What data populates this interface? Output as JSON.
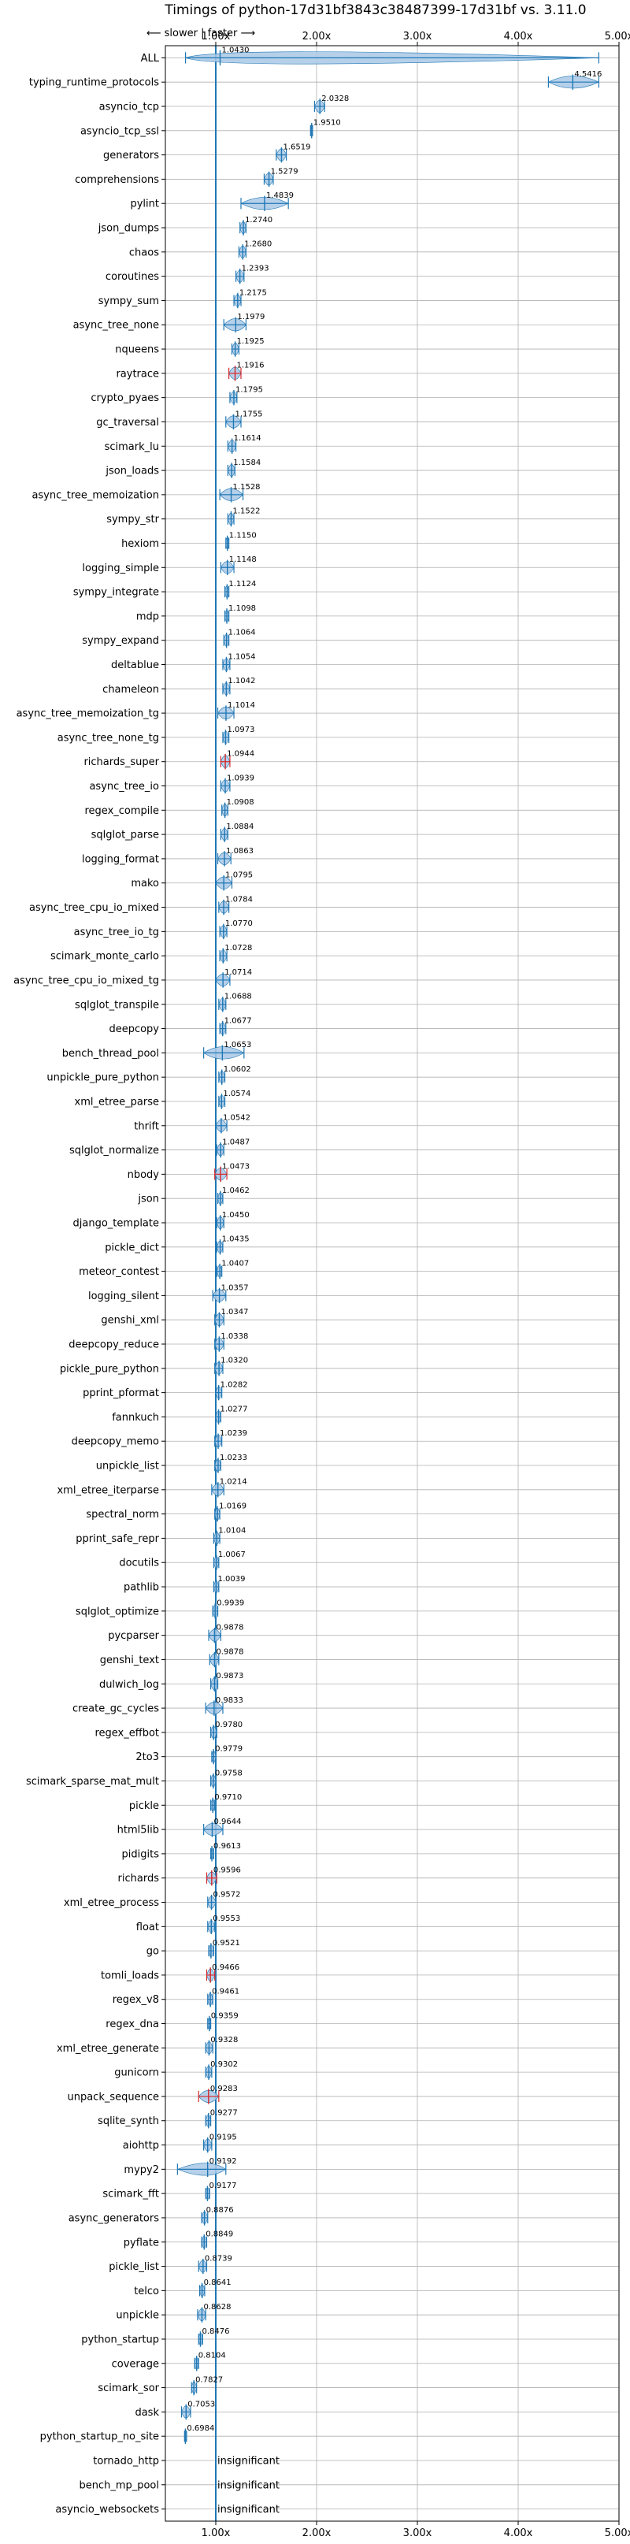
{
  "chart_data": {
    "type": "violin",
    "title": "Timings of python-17d31bf3843c38487399-17d31bf vs. 3.11.0",
    "direction_note": "⟵ slower | faster ⟶",
    "xlim": [
      0.5,
      5.0
    ],
    "xticks": [
      1,
      2,
      3,
      4,
      5
    ],
    "xtick_labels": [
      "1.00x",
      "2.00x",
      "3.00x",
      "4.00x",
      "5.00x"
    ],
    "reference_line": 1.0,
    "grid": true,
    "colors": {
      "violin": "#a9c8e6",
      "edge": "#1f77b4",
      "stat": "#1f77b4",
      "highlight": "#d62728"
    },
    "insignificant_label": "insignificant",
    "benchmarks": [
      {
        "name": "ALL",
        "value": 1.043,
        "label": "1.0430",
        "lo": 0.7,
        "hi": 4.8
      },
      {
        "name": "typing_runtime_protocols",
        "value": 4.5416,
        "label": "4.5416",
        "lo": 4.3,
        "hi": 4.8
      },
      {
        "name": "asyncio_tcp",
        "value": 2.0328,
        "label": "2.0328",
        "lo": 1.98,
        "hi": 2.08
      },
      {
        "name": "asyncio_tcp_ssl",
        "value": 1.951,
        "label": "1.9510",
        "lo": 1.94,
        "hi": 1.96
      },
      {
        "name": "generators",
        "value": 1.6519,
        "label": "1.6519",
        "lo": 1.6,
        "hi": 1.7
      },
      {
        "name": "comprehensions",
        "value": 1.5279,
        "label": "1.5279",
        "lo": 1.48,
        "hi": 1.57
      },
      {
        "name": "pylint",
        "value": 1.4839,
        "label": "1.4839",
        "lo": 1.25,
        "hi": 1.72
      },
      {
        "name": "json_dumps",
        "value": 1.274,
        "label": "1.2740",
        "lo": 1.24,
        "hi": 1.3
      },
      {
        "name": "chaos",
        "value": 1.268,
        "label": "1.2680",
        "lo": 1.23,
        "hi": 1.3
      },
      {
        "name": "coroutines",
        "value": 1.2393,
        "label": "1.2393",
        "lo": 1.2,
        "hi": 1.28
      },
      {
        "name": "sympy_sum",
        "value": 1.2175,
        "label": "1.2175",
        "lo": 1.18,
        "hi": 1.25
      },
      {
        "name": "async_tree_none",
        "value": 1.1979,
        "label": "1.1979",
        "lo": 1.08,
        "hi": 1.3
      },
      {
        "name": "nqueens",
        "value": 1.1925,
        "label": "1.1925",
        "lo": 1.16,
        "hi": 1.23
      },
      {
        "name": "raytrace",
        "value": 1.1916,
        "label": "1.1916",
        "lo": 1.13,
        "hi": 1.25,
        "highlight": true
      },
      {
        "name": "crypto_pyaes",
        "value": 1.1795,
        "label": "1.1795",
        "lo": 1.14,
        "hi": 1.21
      },
      {
        "name": "gc_traversal",
        "value": 1.1755,
        "label": "1.1755",
        "lo": 1.1,
        "hi": 1.25
      },
      {
        "name": "scimark_lu",
        "value": 1.1614,
        "label": "1.1614",
        "lo": 1.12,
        "hi": 1.2
      },
      {
        "name": "json_loads",
        "value": 1.1584,
        "label": "1.1584",
        "lo": 1.12,
        "hi": 1.19
      },
      {
        "name": "async_tree_memoization",
        "value": 1.1528,
        "label": "1.1528",
        "lo": 1.04,
        "hi": 1.27
      },
      {
        "name": "sympy_str",
        "value": 1.1522,
        "label": "1.1522",
        "lo": 1.12,
        "hi": 1.18
      },
      {
        "name": "hexiom",
        "value": 1.115,
        "label": "1.1150",
        "lo": 1.1,
        "hi": 1.13
      },
      {
        "name": "logging_simple",
        "value": 1.1148,
        "label": "1.1148",
        "lo": 1.05,
        "hi": 1.18
      },
      {
        "name": "sympy_integrate",
        "value": 1.1124,
        "label": "1.1124",
        "lo": 1.09,
        "hi": 1.13
      },
      {
        "name": "mdp",
        "value": 1.1098,
        "label": "1.1098",
        "lo": 1.09,
        "hi": 1.13
      },
      {
        "name": "sympy_expand",
        "value": 1.1064,
        "label": "1.1064",
        "lo": 1.08,
        "hi": 1.13
      },
      {
        "name": "deltablue",
        "value": 1.1054,
        "label": "1.1054",
        "lo": 1.07,
        "hi": 1.14
      },
      {
        "name": "chameleon",
        "value": 1.1042,
        "label": "1.1042",
        "lo": 1.07,
        "hi": 1.14
      },
      {
        "name": "async_tree_memoization_tg",
        "value": 1.1014,
        "label": "1.1014",
        "lo": 1.02,
        "hi": 1.18
      },
      {
        "name": "async_tree_none_tg",
        "value": 1.0973,
        "label": "1.0973",
        "lo": 1.07,
        "hi": 1.13
      },
      {
        "name": "richards_super",
        "value": 1.0944,
        "label": "1.0944",
        "lo": 1.05,
        "hi": 1.14,
        "highlight": true
      },
      {
        "name": "async_tree_io",
        "value": 1.0939,
        "label": "1.0939",
        "lo": 1.05,
        "hi": 1.14
      },
      {
        "name": "regex_compile",
        "value": 1.0908,
        "label": "1.0908",
        "lo": 1.06,
        "hi": 1.12
      },
      {
        "name": "sqlglot_parse",
        "value": 1.0884,
        "label": "1.0884",
        "lo": 1.05,
        "hi": 1.12
      },
      {
        "name": "logging_format",
        "value": 1.0863,
        "label": "1.0863",
        "lo": 1.02,
        "hi": 1.15
      },
      {
        "name": "mako",
        "value": 1.0795,
        "label": "1.0795",
        "lo": 1.0,
        "hi": 1.16
      },
      {
        "name": "async_tree_cpu_io_mixed",
        "value": 1.0784,
        "label": "1.0784",
        "lo": 1.03,
        "hi": 1.13
      },
      {
        "name": "async_tree_io_tg",
        "value": 1.077,
        "label": "1.0770",
        "lo": 1.04,
        "hi": 1.11
      },
      {
        "name": "scimark_monte_carlo",
        "value": 1.0728,
        "label": "1.0728",
        "lo": 1.04,
        "hi": 1.11
      },
      {
        "name": "async_tree_cpu_io_mixed_tg",
        "value": 1.0714,
        "label": "1.0714",
        "lo": 1.0,
        "hi": 1.14
      },
      {
        "name": "sqlglot_transpile",
        "value": 1.0688,
        "label": "1.0688",
        "lo": 1.03,
        "hi": 1.1
      },
      {
        "name": "deepcopy",
        "value": 1.0677,
        "label": "1.0677",
        "lo": 1.04,
        "hi": 1.1
      },
      {
        "name": "bench_thread_pool",
        "value": 1.0653,
        "label": "1.0653",
        "lo": 0.88,
        "hi": 1.28
      },
      {
        "name": "unpickle_pure_python",
        "value": 1.0602,
        "label": "1.0602",
        "lo": 1.03,
        "hi": 1.09
      },
      {
        "name": "xml_etree_parse",
        "value": 1.0574,
        "label": "1.0574",
        "lo": 1.03,
        "hi": 1.09
      },
      {
        "name": "thrift",
        "value": 1.0542,
        "label": "1.0542",
        "lo": 1.0,
        "hi": 1.11
      },
      {
        "name": "sqlglot_normalize",
        "value": 1.0487,
        "label": "1.0487",
        "lo": 1.01,
        "hi": 1.08
      },
      {
        "name": "nbody",
        "value": 1.0473,
        "label": "1.0473",
        "lo": 0.99,
        "hi": 1.11,
        "highlight": true
      },
      {
        "name": "json",
        "value": 1.0462,
        "label": "1.0462",
        "lo": 1.02,
        "hi": 1.07
      },
      {
        "name": "django_template",
        "value": 1.045,
        "label": "1.0450",
        "lo": 1.01,
        "hi": 1.08
      },
      {
        "name": "pickle_dict",
        "value": 1.0435,
        "label": "1.0435",
        "lo": 1.01,
        "hi": 1.07
      },
      {
        "name": "meteor_contest",
        "value": 1.0407,
        "label": "1.0407",
        "lo": 1.01,
        "hi": 1.06
      },
      {
        "name": "logging_silent",
        "value": 1.0357,
        "label": "1.0357",
        "lo": 0.97,
        "hi": 1.1
      },
      {
        "name": "genshi_xml",
        "value": 1.0347,
        "label": "1.0347",
        "lo": 0.99,
        "hi": 1.08
      },
      {
        "name": "deepcopy_reduce",
        "value": 1.0338,
        "label": "1.0338",
        "lo": 0.99,
        "hi": 1.08
      },
      {
        "name": "pickle_pure_python",
        "value": 1.032,
        "label": "1.0320",
        "lo": 0.99,
        "hi": 1.07
      },
      {
        "name": "pprint_pformat",
        "value": 1.0282,
        "label": "1.0282",
        "lo": 1.0,
        "hi": 1.06
      },
      {
        "name": "fannkuch",
        "value": 1.0277,
        "label": "1.0277",
        "lo": 1.0,
        "hi": 1.05
      },
      {
        "name": "deepcopy_memo",
        "value": 1.0239,
        "label": "1.0239",
        "lo": 0.99,
        "hi": 1.06
      },
      {
        "name": "unpickle_list",
        "value": 1.0233,
        "label": "1.0233",
        "lo": 0.99,
        "hi": 1.05
      },
      {
        "name": "xml_etree_iterparse",
        "value": 1.0214,
        "label": "1.0214",
        "lo": 0.96,
        "hi": 1.08
      },
      {
        "name": "spectral_norm",
        "value": 1.0169,
        "label": "1.0169",
        "lo": 0.99,
        "hi": 1.04
      },
      {
        "name": "pprint_safe_repr",
        "value": 1.0104,
        "label": "1.0104",
        "lo": 0.98,
        "hi": 1.04
      },
      {
        "name": "docutils",
        "value": 1.0067,
        "label": "1.0067",
        "lo": 0.98,
        "hi": 1.03
      },
      {
        "name": "pathlib",
        "value": 1.0039,
        "label": "1.0039",
        "lo": 0.98,
        "hi": 1.03
      },
      {
        "name": "sqlglot_optimize",
        "value": 0.9939,
        "label": "0.9939",
        "lo": 0.97,
        "hi": 1.02
      },
      {
        "name": "pycparser",
        "value": 0.9878,
        "label": "0.9878",
        "lo": 0.93,
        "hi": 1.05
      },
      {
        "name": "genshi_text",
        "value": 0.9878,
        "label": "0.9878",
        "lo": 0.94,
        "hi": 1.03
      },
      {
        "name": "dulwich_log",
        "value": 0.9873,
        "label": "0.9873",
        "lo": 0.95,
        "hi": 1.02
      },
      {
        "name": "create_gc_cycles",
        "value": 0.9833,
        "label": "0.9833",
        "lo": 0.9,
        "hi": 1.07
      },
      {
        "name": "regex_effbot",
        "value": 0.978,
        "label": "0.9780",
        "lo": 0.95,
        "hi": 1.01
      },
      {
        "name": "2to3",
        "value": 0.9779,
        "label": "0.9779",
        "lo": 0.96,
        "hi": 1.0
      },
      {
        "name": "scimark_sparse_mat_mult",
        "value": 0.9758,
        "label": "0.9758",
        "lo": 0.95,
        "hi": 1.0
      },
      {
        "name": "pickle",
        "value": 0.971,
        "label": "0.9710",
        "lo": 0.95,
        "hi": 0.99
      },
      {
        "name": "html5lib",
        "value": 0.9644,
        "label": "0.9644",
        "lo": 0.88,
        "hi": 1.07
      },
      {
        "name": "pidigits",
        "value": 0.9613,
        "label": "0.9613",
        "lo": 0.95,
        "hi": 0.98
      },
      {
        "name": "richards",
        "value": 0.9596,
        "label": "0.9596",
        "lo": 0.91,
        "hi": 1.01,
        "highlight": true
      },
      {
        "name": "xml_etree_process",
        "value": 0.9572,
        "label": "0.9572",
        "lo": 0.92,
        "hi": 1.0
      },
      {
        "name": "float",
        "value": 0.9553,
        "label": "0.9553",
        "lo": 0.92,
        "hi": 0.99
      },
      {
        "name": "go",
        "value": 0.9521,
        "label": "0.9521",
        "lo": 0.93,
        "hi": 0.98
      },
      {
        "name": "tomli_loads",
        "value": 0.9466,
        "label": "0.9466",
        "lo": 0.91,
        "hi": 0.99,
        "highlight": true
      },
      {
        "name": "regex_v8",
        "value": 0.9461,
        "label": "0.9461",
        "lo": 0.92,
        "hi": 0.97
      },
      {
        "name": "regex_dna",
        "value": 0.9359,
        "label": "0.9359",
        "lo": 0.92,
        "hi": 0.95
      },
      {
        "name": "xml_etree_generate",
        "value": 0.9328,
        "label": "0.9328",
        "lo": 0.9,
        "hi": 0.97
      },
      {
        "name": "gunicorn",
        "value": 0.9302,
        "label": "0.9302",
        "lo": 0.9,
        "hi": 0.96
      },
      {
        "name": "unpack_sequence",
        "value": 0.9283,
        "label": "0.9283",
        "lo": 0.83,
        "hi": 1.03,
        "highlight": true
      },
      {
        "name": "sqlite_synth",
        "value": 0.9277,
        "label": "0.9277",
        "lo": 0.9,
        "hi": 0.95
      },
      {
        "name": "aiohttp",
        "value": 0.9195,
        "label": "0.9195",
        "lo": 0.88,
        "hi": 0.96
      },
      {
        "name": "mypy2",
        "value": 0.9192,
        "label": "0.9192",
        "lo": 0.62,
        "hi": 1.1
      },
      {
        "name": "scimark_fft",
        "value": 0.9177,
        "label": "0.9177",
        "lo": 0.9,
        "hi": 0.94
      },
      {
        "name": "async_generators",
        "value": 0.8876,
        "label": "0.8876",
        "lo": 0.86,
        "hi": 0.92
      },
      {
        "name": "pyflate",
        "value": 0.8849,
        "label": "0.8849",
        "lo": 0.86,
        "hi": 0.91
      },
      {
        "name": "pickle_list",
        "value": 0.8739,
        "label": "0.8739",
        "lo": 0.83,
        "hi": 0.91
      },
      {
        "name": "telco",
        "value": 0.8641,
        "label": "0.8641",
        "lo": 0.84,
        "hi": 0.89
      },
      {
        "name": "unpickle",
        "value": 0.8628,
        "label": "0.8628",
        "lo": 0.82,
        "hi": 0.9
      },
      {
        "name": "python_startup",
        "value": 0.8476,
        "label": "0.8476",
        "lo": 0.83,
        "hi": 0.87
      },
      {
        "name": "coverage",
        "value": 0.8104,
        "label": "0.8104",
        "lo": 0.79,
        "hi": 0.83
      },
      {
        "name": "scimark_sor",
        "value": 0.7827,
        "label": "0.7827",
        "lo": 0.76,
        "hi": 0.81
      },
      {
        "name": "dask",
        "value": 0.7053,
        "label": "0.7053",
        "lo": 0.66,
        "hi": 0.75
      },
      {
        "name": "python_startup_no_site",
        "value": 0.6984,
        "label": "0.6984",
        "lo": 0.69,
        "hi": 0.71
      },
      {
        "name": "tornado_http",
        "insignificant": true
      },
      {
        "name": "bench_mp_pool",
        "insignificant": true
      },
      {
        "name": "asyncio_websockets",
        "insignificant": true
      }
    ]
  }
}
